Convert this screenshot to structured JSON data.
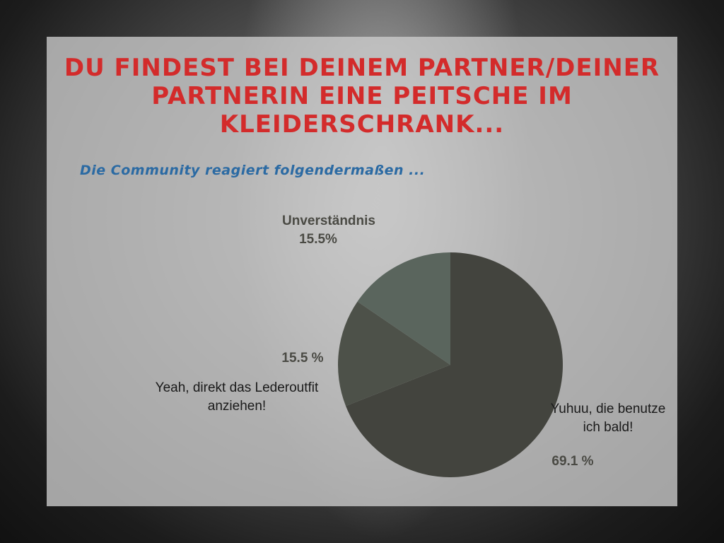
{
  "chart_data": {
    "type": "pie",
    "title": "Du findest bei deinem Partner/deiner Partnerin eine Peitsche im Kleiderschrank...",
    "subtitle": "Die Community reagiert folgendermaßen ...",
    "slices": [
      {
        "label": "Yuhuu, die benutze ich bald!",
        "value": 69.1,
        "value_label": "69.1 %",
        "color": "#43443e"
      },
      {
        "label": "Yeah, direkt das Lederoutfit anziehen!",
        "value": 15.5,
        "value_label": "15.5 %",
        "color": "#4d5149"
      },
      {
        "label": "Unverständnis",
        "value": 15.5,
        "value_label": "15.5%",
        "color": "#5a655d"
      }
    ],
    "start_angle": "12 o'clock",
    "direction": "clockwise",
    "colors": {
      "title": "#d32b2b",
      "subtitle": "#2b6aa3"
    }
  }
}
